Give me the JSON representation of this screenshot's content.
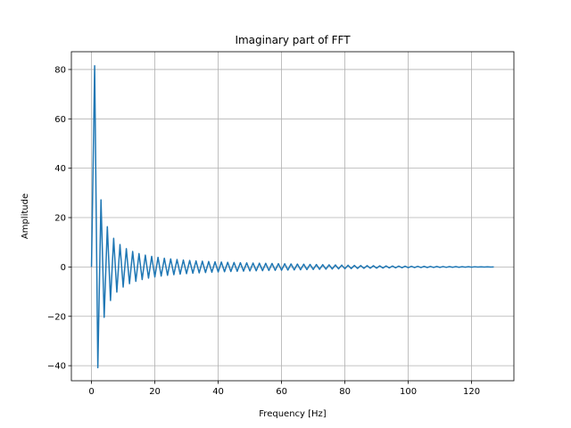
{
  "chart_data": {
    "type": "line",
    "title": "Imaginary part of FFT",
    "xlabel": "Frequency [Hz]",
    "ylabel": "Amplitude",
    "xlim": [
      -6.35,
      133.35
    ],
    "ylim": [
      -46.1,
      87.2
    ],
    "xticks": [
      0,
      20,
      40,
      60,
      80,
      100,
      120
    ],
    "yticks": [
      -40,
      -20,
      0,
      20,
      40,
      60,
      80
    ],
    "xtick_labels": [
      "0",
      "20",
      "40",
      "60",
      "80",
      "100",
      "120"
    ],
    "ytick_labels": [
      "−40",
      "−20",
      "0",
      "20",
      "40",
      "60",
      "80"
    ],
    "grid": true,
    "series": [
      {
        "color": "#1f77b4",
        "x": [
          0,
          1,
          2,
          3,
          4,
          5,
          6,
          7,
          8,
          9,
          10,
          11,
          12,
          13,
          14,
          15,
          16,
          17,
          18,
          19,
          20,
          21,
          22,
          23,
          24,
          25,
          26,
          27,
          28,
          29,
          30,
          31,
          32,
          33,
          34,
          35,
          36,
          37,
          38,
          39,
          40,
          41,
          42,
          43,
          44,
          45,
          46,
          47,
          48,
          49,
          50,
          51,
          52,
          53,
          54,
          55,
          56,
          57,
          58,
          59,
          60,
          61,
          62,
          63,
          64,
          65,
          66,
          67,
          68,
          69,
          70,
          71,
          72,
          73,
          74,
          75,
          76,
          77,
          78,
          79,
          80,
          81,
          82,
          83,
          84,
          85,
          86,
          87,
          88,
          89,
          90,
          91,
          92,
          93,
          94,
          95,
          96,
          97,
          98,
          99,
          100,
          101,
          102,
          103,
          104,
          105,
          106,
          107,
          108,
          109,
          110,
          111,
          112,
          113,
          114,
          115,
          116,
          117,
          118,
          119,
          120,
          121,
          122,
          123,
          124,
          125,
          126,
          127
        ],
        "y": [
          0,
          81.5,
          -40.8,
          27.2,
          -20.4,
          16.3,
          -13.6,
          11.6,
          -10.2,
          9.06,
          -8.15,
          7.41,
          -6.79,
          6.27,
          -5.82,
          5.43,
          -5.09,
          4.79,
          -4.53,
          4.29,
          -4.07,
          3.88,
          -3.7,
          3.54,
          -3.4,
          3.26,
          -3.13,
          3.02,
          -2.91,
          2.81,
          -2.71,
          2.63,
          -2.55,
          2.47,
          -2.4,
          2.33,
          -2.26,
          2.2,
          -2.14,
          2.09,
          -2.04,
          1.99,
          -1.94,
          1.89,
          -1.85,
          1.81,
          -1.77,
          1.73,
          -1.69,
          1.66,
          -1.62,
          1.59,
          -1.56,
          1.53,
          -1.5,
          1.47,
          -1.44,
          1.41,
          -1.38,
          1.35,
          -1.32,
          1.29,
          -1.26,
          1.23,
          -1.2,
          1.17,
          -1.14,
          1.11,
          -1.08,
          1.05,
          -1.02,
          0.99,
          -0.96,
          0.93,
          -0.9,
          0.87,
          -0.84,
          0.81,
          -0.78,
          0.75,
          -0.72,
          0.69,
          -0.66,
          0.63,
          -0.6,
          0.58,
          -0.56,
          0.54,
          -0.52,
          0.5,
          -0.48,
          0.46,
          -0.44,
          0.42,
          -0.4,
          0.38,
          -0.36,
          0.34,
          -0.32,
          0.3,
          -0.28,
          0.27,
          -0.26,
          0.25,
          -0.24,
          0.23,
          -0.22,
          0.21,
          -0.2,
          0.19,
          -0.18,
          0.17,
          -0.16,
          0.15,
          -0.14,
          0.13,
          -0.12,
          0.11,
          -0.1,
          0.09,
          -0.08,
          0.07,
          -0.06,
          0.05,
          -0.04,
          0.03,
          -0.02,
          0
        ]
      }
    ]
  }
}
